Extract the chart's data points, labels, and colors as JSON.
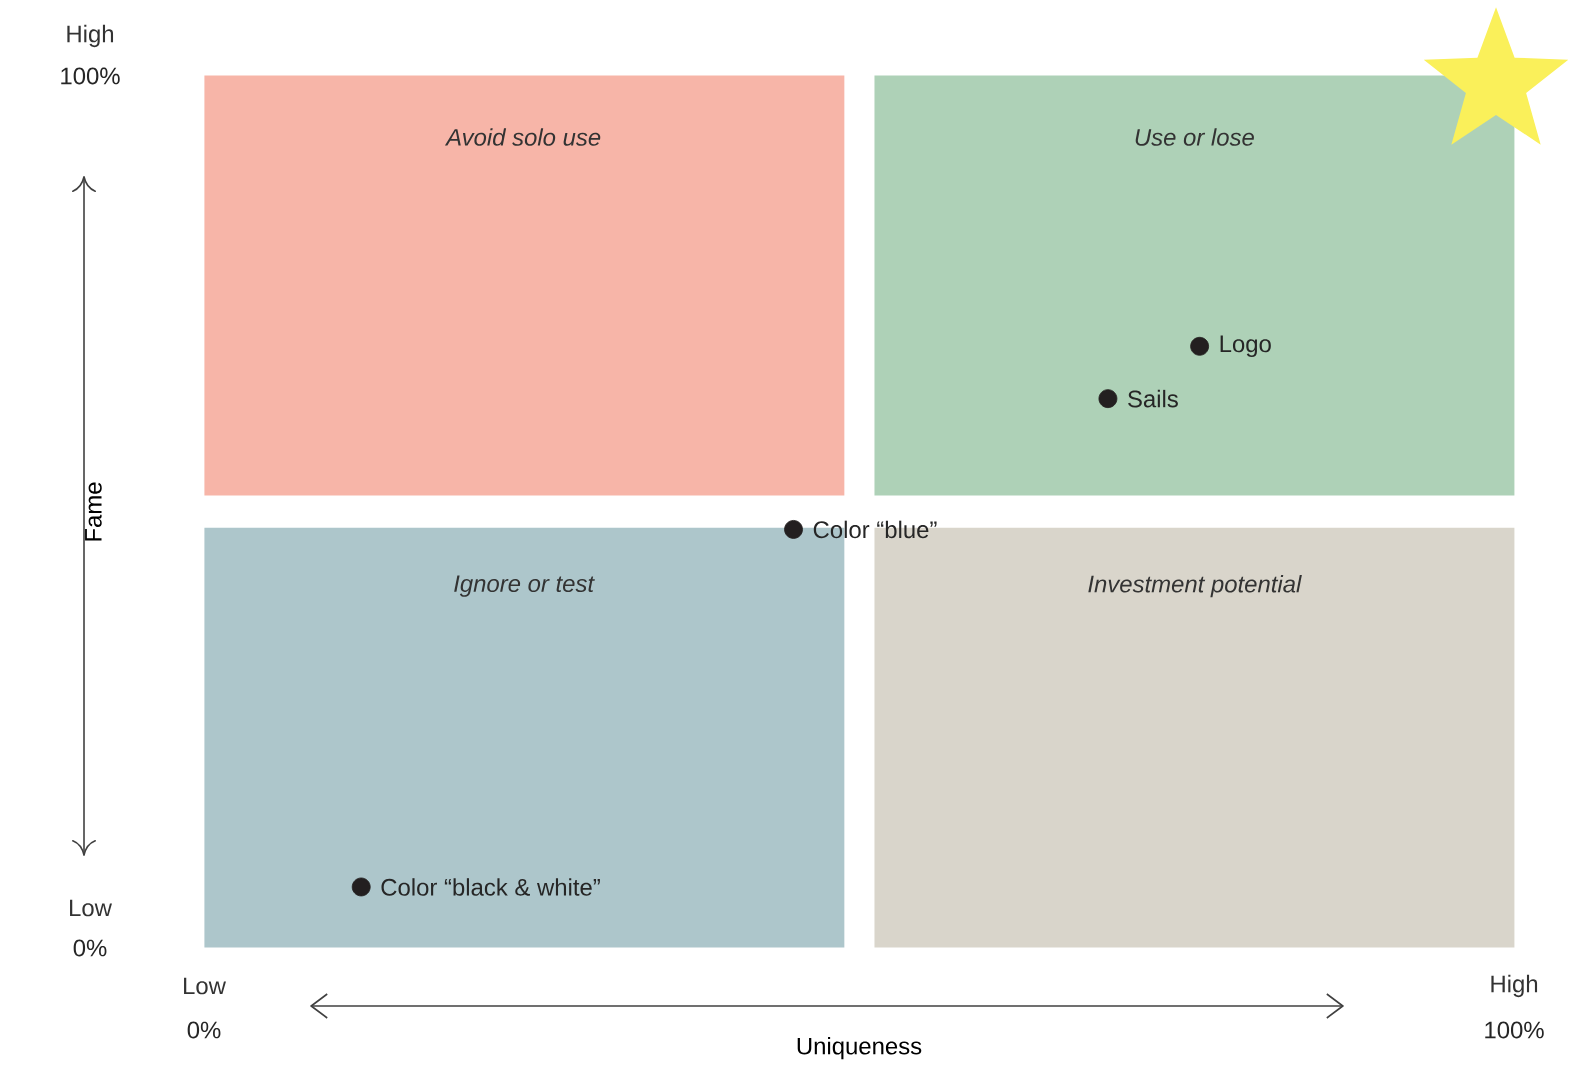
{
  "chart_data": {
    "type": "scatter",
    "xlabel": "Uniqueness",
    "ylabel": "Fame",
    "xlim": [
      0,
      100
    ],
    "ylim": [
      0,
      100
    ],
    "xticks": [
      {
        "value": 0,
        "label": "0%"
      },
      {
        "value": 100,
        "label": "100%"
      }
    ],
    "yticks": [
      {
        "value": 0,
        "label": "0%"
      },
      {
        "value": 100,
        "label": "100%"
      }
    ],
    "series": [
      {
        "color": "#231f20",
        "x": [
          76,
          69,
          45,
          12
        ],
        "values": [
          69,
          63,
          48,
          7
        ],
        "value_labels": [
          "Logo",
          "Sails",
          "Color “blue”",
          "Color “black & white”"
        ]
      }
    ],
    "annotations": [
      "Avoid solo use",
      "Use or lose",
      "Ignore or test",
      "Investment potential",
      "Low",
      "High",
      "Low",
      "High"
    ]
  }
}
